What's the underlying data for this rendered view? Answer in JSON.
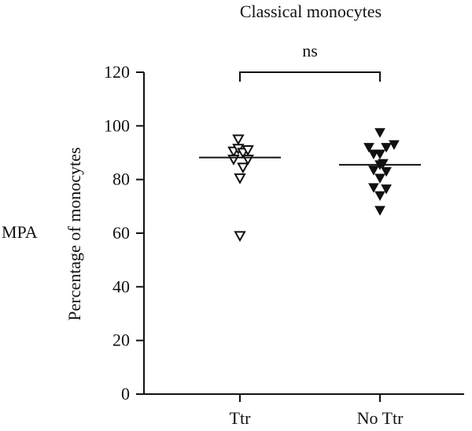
{
  "side_label": "MPA",
  "chart_data": {
    "type": "scatter",
    "title": "Classical monocytes",
    "ylabel": "Percentage of monocytes",
    "xlabel": "",
    "categories": [
      "Ttr",
      "No Ttr"
    ],
    "ylim": [
      0,
      120
    ],
    "yticks": [
      0,
      20,
      40,
      60,
      80,
      100,
      120
    ],
    "significance": {
      "between": [
        "Ttr",
        "No Ttr"
      ],
      "label": "ns"
    },
    "groups": [
      {
        "category": "Ttr",
        "marker": "open-down-triangle",
        "mean": 88.2,
        "points": [
          {
            "offset": -0.31,
            "y": 90.5
          },
          {
            "offset": -0.31,
            "y": 87.5
          },
          {
            "offset": -0.08,
            "y": 95.0
          },
          {
            "offset": -0.08,
            "y": 91.5
          },
          {
            "offset": 0.0,
            "y": 80.5
          },
          {
            "offset": 0.15,
            "y": 90.0
          },
          {
            "offset": 0.15,
            "y": 84.5
          },
          {
            "offset": 0.39,
            "y": 91.0
          },
          {
            "offset": 0.39,
            "y": 87.5
          },
          {
            "offset": 0.0,
            "y": 59.0
          }
        ]
      },
      {
        "category": "No Ttr",
        "marker": "filled-down-triangle",
        "mean": 85.5,
        "points": [
          {
            "offset": -0.54,
            "y": 92.0
          },
          {
            "offset": -0.31,
            "y": 89.5
          },
          {
            "offset": -0.31,
            "y": 83.5
          },
          {
            "offset": -0.31,
            "y": 77.0
          },
          {
            "offset": 0.0,
            "y": 97.5
          },
          {
            "offset": 0.0,
            "y": 89.5
          },
          {
            "offset": 0.0,
            "y": 85.5
          },
          {
            "offset": 0.0,
            "y": 80.5
          },
          {
            "offset": 0.0,
            "y": 74.0
          },
          {
            "offset": 0.0,
            "y": 68.5
          },
          {
            "offset": 0.15,
            "y": 86.0
          },
          {
            "offset": 0.31,
            "y": 92.0
          },
          {
            "offset": 0.31,
            "y": 83.0
          },
          {
            "offset": 0.31,
            "y": 76.5
          },
          {
            "offset": 0.69,
            "y": 93.0
          }
        ]
      }
    ]
  }
}
